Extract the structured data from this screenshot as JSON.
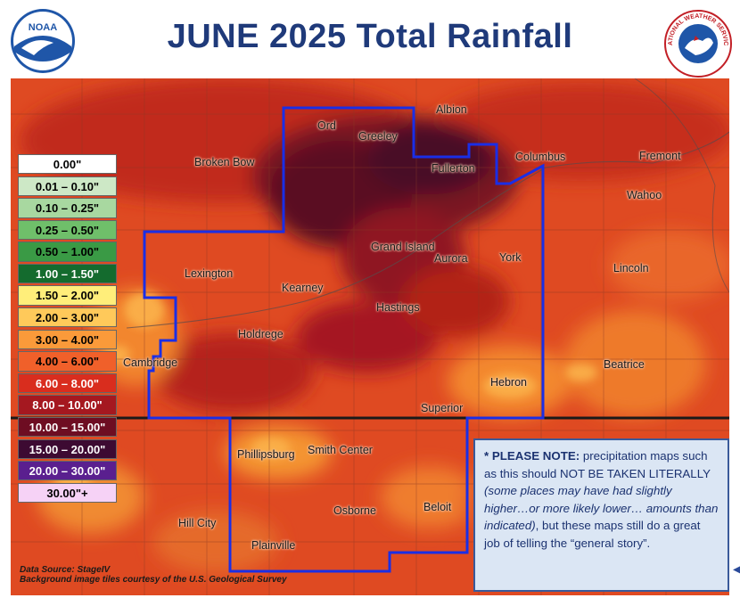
{
  "title": "JUNE 2025 Total Rainfall",
  "logos": {
    "left": {
      "name": "NOAA",
      "text": "NOAA",
      "icon": "noaa-logo"
    },
    "right": {
      "name": "National Weather Service",
      "text": "NATIONAL WEATHER SERVICE",
      "icon": "nws-logo"
    }
  },
  "legend": [
    {
      "label": "0.00\"",
      "color": "#ffffff",
      "text_color": "#000000"
    },
    {
      "label": "0.01 – 0.10\"",
      "color": "#cde8c6",
      "text_color": "#000000"
    },
    {
      "label": "0.10 – 0.25\"",
      "color": "#a8d8a0",
      "text_color": "#000000"
    },
    {
      "label": "0.25 – 0.50\"",
      "color": "#6fbf6a",
      "text_color": "#000000"
    },
    {
      "label": "0.50 – 1.00\"",
      "color": "#3a9a45",
      "text_color": "#000000"
    },
    {
      "label": "1.00 – 1.50\"",
      "color": "#146b2e",
      "text_color": "#ffffff"
    },
    {
      "label": "1.50 – 2.00\"",
      "color": "#ffee7a",
      "text_color": "#000000"
    },
    {
      "label": "2.00 – 3.00\"",
      "color": "#ffc95a",
      "text_color": "#000000"
    },
    {
      "label": "3.00 – 4.00\"",
      "color": "#fa9a3a",
      "text_color": "#000000"
    },
    {
      "label": "4.00 – 6.00\"",
      "color": "#f0602a",
      "text_color": "#000000"
    },
    {
      "label": "6.00 – 8.00\"",
      "color": "#d92d1e",
      "text_color": "#ffffff"
    },
    {
      "label": "8.00 – 10.00\"",
      "color": "#a51820",
      "text_color": "#ffffff"
    },
    {
      "label": "10.00 – 15.00\"",
      "color": "#6e0d22",
      "text_color": "#ffffff"
    },
    {
      "label": "15.00 – 20.00\"",
      "color": "#3d0a32",
      "text_color": "#ffffff"
    },
    {
      "label": "20.00 – 30.00\"",
      "color": "#5a1f8f",
      "text_color": "#ffffff"
    },
    {
      "label": "30.00\"+",
      "color": "#f6d2f6",
      "text_color": "#000000"
    }
  ],
  "cities": [
    {
      "name": "Ord"
    },
    {
      "name": "Greeley"
    },
    {
      "name": "Albion"
    },
    {
      "name": "Fullerton"
    },
    {
      "name": "Columbus"
    },
    {
      "name": "Fremont"
    },
    {
      "name": "Broken Bow"
    },
    {
      "name": "Wahoo"
    },
    {
      "name": "Grand Island"
    },
    {
      "name": "Aurora"
    },
    {
      "name": "York"
    },
    {
      "name": "Lincoln"
    },
    {
      "name": "Lexington"
    },
    {
      "name": "Kearney"
    },
    {
      "name": "Hastings"
    },
    {
      "name": "Holdrege"
    },
    {
      "name": "Cambridge"
    },
    {
      "name": "Beatrice"
    },
    {
      "name": "Hebron"
    },
    {
      "name": "Superior"
    },
    {
      "name": "Phillipsburg"
    },
    {
      "name": "Smith Center"
    },
    {
      "name": "Osborne"
    },
    {
      "name": "Beloit"
    },
    {
      "name": "Hill City"
    },
    {
      "name": "Plainville"
    }
  ],
  "note": {
    "bold": "* PLEASE NOTE:",
    "text1": " precipitation maps such as this should NOT BE TAKEN LITERALLY ",
    "italic": "(some places may have had slightly higher…or more likely lower… amounts than indicated)",
    "text2": ", but these maps still do a great job of telling the “general story”."
  },
  "source": {
    "line1": "Data Source: StageIV",
    "line2": "Background image tiles courtesy of the U.S. Geological Survey"
  },
  "colors": {
    "title": "#1f3a7a",
    "outline": "#1a2ee6",
    "state_line": "#1a1a1a"
  }
}
